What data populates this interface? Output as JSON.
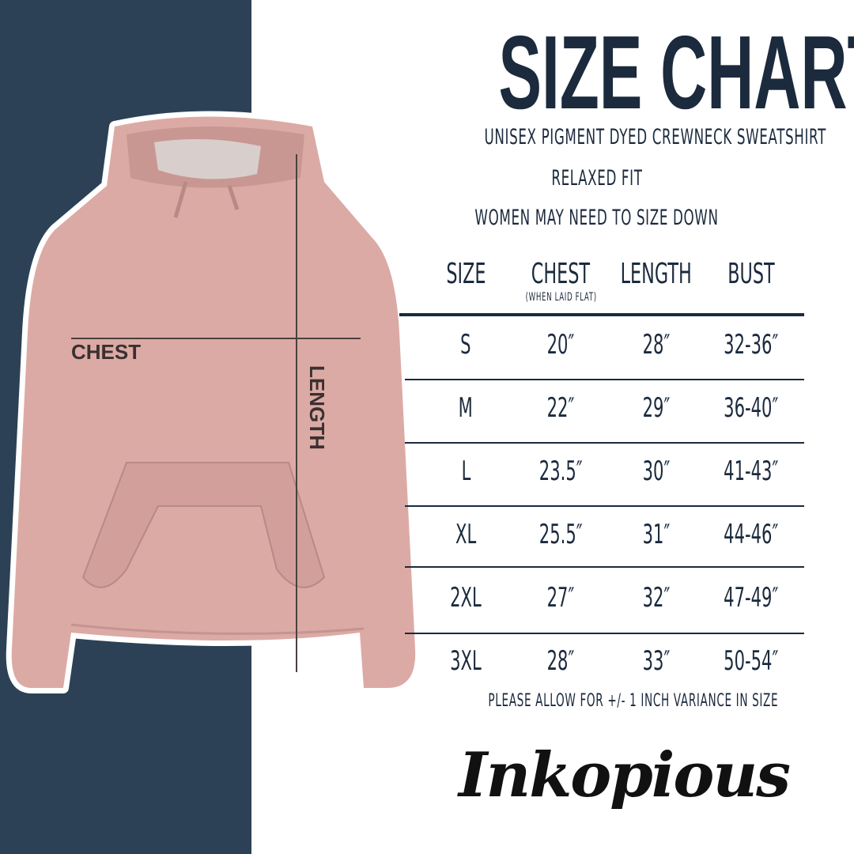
{
  "title": "SIZE CHART",
  "subtitle_lines": [
    "UNISEX PIGMENT DYED CREWNECK SWEATSHIRT",
    "RELAXED FIT",
    "WOMEN MAY NEED TO SIZE DOWN"
  ],
  "table": {
    "headers": [
      "SIZE",
      "CHEST",
      "LENGTH",
      "BUST"
    ],
    "chest_note": "(WHEN LAID FLAT)",
    "rows": [
      [
        "S",
        "20″",
        "28″",
        "32-36″"
      ],
      [
        "M",
        "22″",
        "29″",
        "36-40″"
      ],
      [
        "L",
        "23.5″",
        "30″",
        "41-43″"
      ],
      [
        "XL",
        "25.5″",
        "31″",
        "44-46″"
      ],
      [
        "2XL",
        "27″",
        "32″",
        "47-49″"
      ],
      [
        "3XL",
        "28″",
        "33″",
        "50-54″"
      ]
    ]
  },
  "footnote": "PLEASE ALLOW FOR +/- 1 INCH VARIANCE IN SIZE",
  "diagram": {
    "chest_label": "CHEST",
    "length_label": "LENGTH"
  },
  "logo": "Inkopious",
  "colors": {
    "panel": "#2c4155",
    "text": "#1b2a3d",
    "hoodie": "#dcaaa5"
  }
}
